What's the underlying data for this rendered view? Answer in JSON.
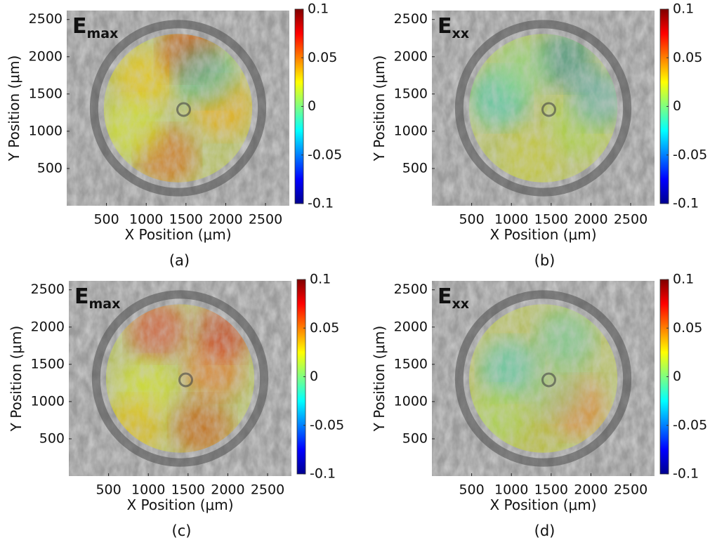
{
  "chart_data": [
    {
      "type": "heatmap",
      "title": "E",
      "title_subscript": "max",
      "panel_label": "(a)",
      "x_label": "X Position (μm)",
      "y_label": "Y Position (μm)",
      "xlim": [
        0,
        2800
      ],
      "ylim": [
        0,
        2620
      ],
      "xticks": [
        500,
        1000,
        1500,
        2000,
        2500
      ],
      "yticks": [
        500,
        1000,
        1500,
        2000,
        2500
      ],
      "colorbar": {
        "colormap": "jet",
        "clim": [
          -0.1,
          0.1
        ],
        "ticks": [
          -0.1,
          -0.05,
          0,
          0.05,
          0.1
        ]
      }
    },
    {
      "type": "heatmap",
      "title": "E",
      "title_subscript": "xx",
      "panel_label": "(b)",
      "x_label": "X Position (μm)",
      "y_label": "Y Position (μm)",
      "xlim": [
        0,
        2800
      ],
      "ylim": [
        0,
        2620
      ],
      "xticks": [
        500,
        1000,
        1500,
        2000,
        2500
      ],
      "yticks": [
        500,
        1000,
        1500,
        2000,
        2500
      ],
      "colorbar": {
        "colormap": "jet",
        "clim": [
          -0.1,
          0.1
        ],
        "ticks": [
          -0.1,
          -0.05,
          0,
          0.05,
          0.1
        ]
      }
    },
    {
      "type": "heatmap",
      "title": "E",
      "title_subscript": "max",
      "panel_label": "(c)",
      "x_label": "X Position (μm)",
      "y_label": "Y Position (μm)",
      "xlim": [
        0,
        2800
      ],
      "ylim": [
        0,
        2620
      ],
      "xticks": [
        500,
        1000,
        1500,
        2000,
        2500
      ],
      "yticks": [
        500,
        1000,
        1500,
        2000,
        2500
      ],
      "colorbar": {
        "colormap": "jet",
        "clim": [
          -0.1,
          0.1
        ],
        "ticks": [
          -0.1,
          -0.05,
          0,
          0.05,
          0.1
        ]
      }
    },
    {
      "type": "heatmap",
      "title": "E",
      "title_subscript": "xx",
      "panel_label": "(d)",
      "x_label": "X Position (μm)",
      "y_label": "Y Position (μm)",
      "xlim": [
        0,
        2800
      ],
      "ylim": [
        0,
        2620
      ],
      "xticks": [
        500,
        1000,
        1500,
        2000,
        2500
      ],
      "yticks": [
        500,
        1000,
        1500,
        2000,
        2500
      ],
      "colorbar": {
        "colormap": "jet",
        "clim": [
          -0.1,
          0.1
        ],
        "ticks": [
          -0.1,
          -0.05,
          0,
          0.05,
          0.1
        ]
      }
    }
  ]
}
